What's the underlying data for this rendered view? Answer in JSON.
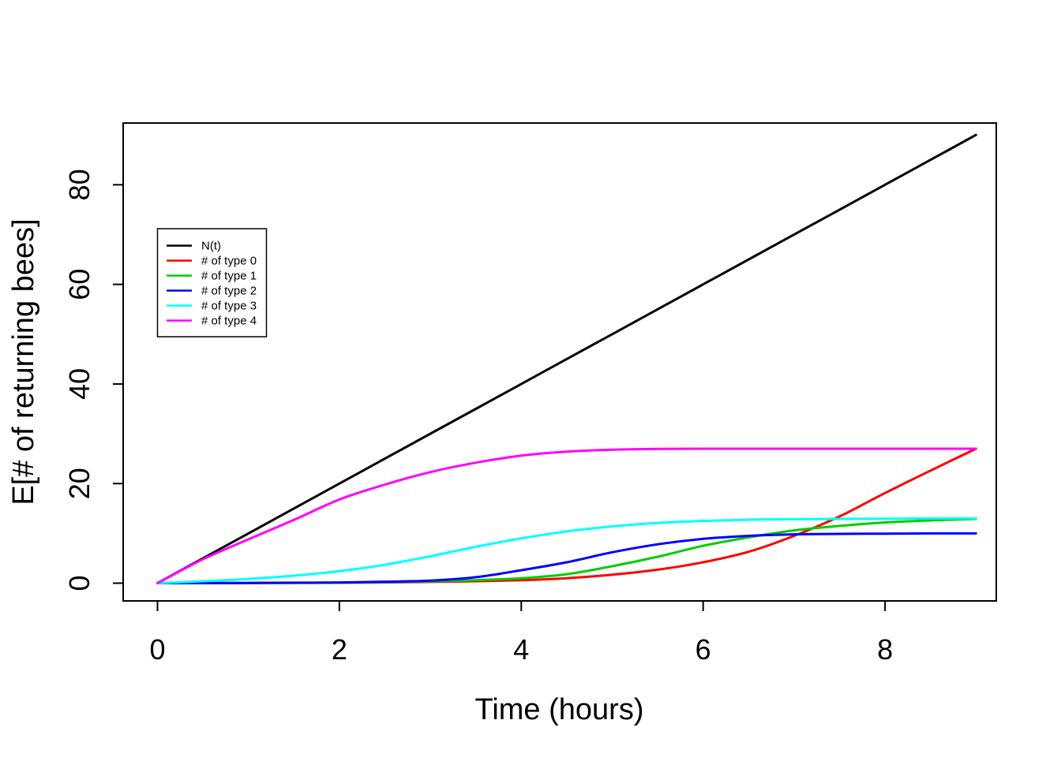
{
  "figure": {
    "background": "#FFFFFF",
    "title": "",
    "x_axis": {
      "label": "Time (hours)",
      "ticks": [
        "0",
        "2",
        "4",
        "6",
        "8"
      ]
    },
    "y_axis": {
      "label": "E[# of returning bees]",
      "ticks": [
        "0",
        "20",
        "40",
        "60",
        "80"
      ]
    }
  },
  "legend": {
    "entries": [
      {
        "label": "N(t)",
        "color": "#000000"
      },
      {
        "label": "# of type 0",
        "color": "#FF0000"
      },
      {
        "label": "# of type 1",
        "color": "#00CD00"
      },
      {
        "label": "# of type 2",
        "color": "#0000FF"
      },
      {
        "label": "# of type 3",
        "color": "#00FFFF"
      },
      {
        "label": "# of type 4",
        "color": "#FF00FF"
      }
    ]
  },
  "chart_data": {
    "type": "line",
    "title": "",
    "xlabel": "Time (hours)",
    "ylabel": "E[# of returning bees]",
    "xlim": [
      0,
      9
    ],
    "ylim": [
      0,
      90
    ],
    "x_ticks": [
      0,
      2,
      4,
      6,
      8
    ],
    "y_ticks": [
      0,
      20,
      40,
      60,
      80
    ],
    "grid": false,
    "legend_position": "upper-left-inside",
    "x": [
      0,
      0.5,
      1,
      1.5,
      2,
      2.5,
      3,
      3.5,
      4,
      4.5,
      5,
      5.5,
      6,
      6.5,
      7,
      7.5,
      8,
      8.5,
      9
    ],
    "series": [
      {
        "name": "N(t)",
        "color": "#000000",
        "values": [
          0,
          5,
          10,
          15,
          20,
          25,
          30,
          35,
          40,
          45,
          50,
          55,
          60,
          65,
          70,
          75,
          80,
          85,
          90
        ]
      },
      {
        "name": "# of type 0",
        "color": "#FF0000",
        "values": [
          0,
          0,
          0.02,
          0.04,
          0.08,
          0.15,
          0.25,
          0.4,
          0.6,
          1.0,
          1.7,
          2.7,
          4.2,
          6.3,
          9.5,
          13.4,
          18.1,
          22.6,
          27
        ]
      },
      {
        "name": "# of type 1",
        "color": "#00CD00",
        "values": [
          0,
          0.01,
          0.03,
          0.06,
          0.1,
          0.2,
          0.35,
          0.6,
          1.0,
          1.8,
          3.4,
          5.3,
          7.5,
          9.2,
          10.6,
          11.5,
          12.2,
          12.6,
          12.9
        ]
      },
      {
        "name": "# of type 2",
        "color": "#0000FF",
        "values": [
          0,
          0.02,
          0.05,
          0.1,
          0.15,
          0.3,
          0.5,
          1.2,
          2.6,
          4.2,
          6.2,
          7.8,
          8.9,
          9.5,
          9.8,
          9.9,
          9.95,
          10,
          10
        ]
      },
      {
        "name": "# of type 3",
        "color": "#00FFFF",
        "values": [
          0,
          0.4,
          0.85,
          1.5,
          2.4,
          3.7,
          5.4,
          7.3,
          9.0,
          10.4,
          11.4,
          12.1,
          12.5,
          12.75,
          12.85,
          12.9,
          12.95,
          13,
          13
        ]
      },
      {
        "name": "# of type 4",
        "color": "#FF00FF",
        "values": [
          0,
          4.8,
          8.8,
          12.7,
          16.8,
          19.8,
          22.3,
          24.2,
          25.6,
          26.4,
          26.8,
          26.95,
          27,
          27,
          27,
          27,
          27,
          27,
          27
        ]
      }
    ]
  }
}
